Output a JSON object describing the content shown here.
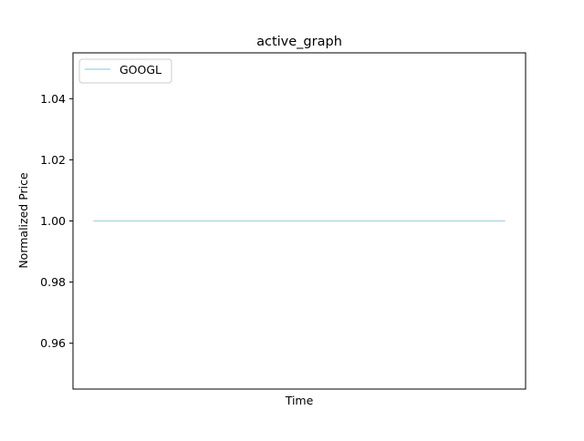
{
  "chart_data": {
    "type": "line",
    "title": "active_graph",
    "xlabel": "Time",
    "ylabel": "Normalized Price",
    "ylim": [
      0.945,
      1.055
    ],
    "y_ticks": [
      "0.96",
      "0.98",
      "1.00",
      "1.02",
      "1.04"
    ],
    "x_ticks": [],
    "grid": false,
    "legend_position": "top-left",
    "series": [
      {
        "name": "GOOGL",
        "color": "#add8e6",
        "x": [
          0,
          1
        ],
        "values": [
          1.0,
          1.0
        ]
      }
    ]
  }
}
